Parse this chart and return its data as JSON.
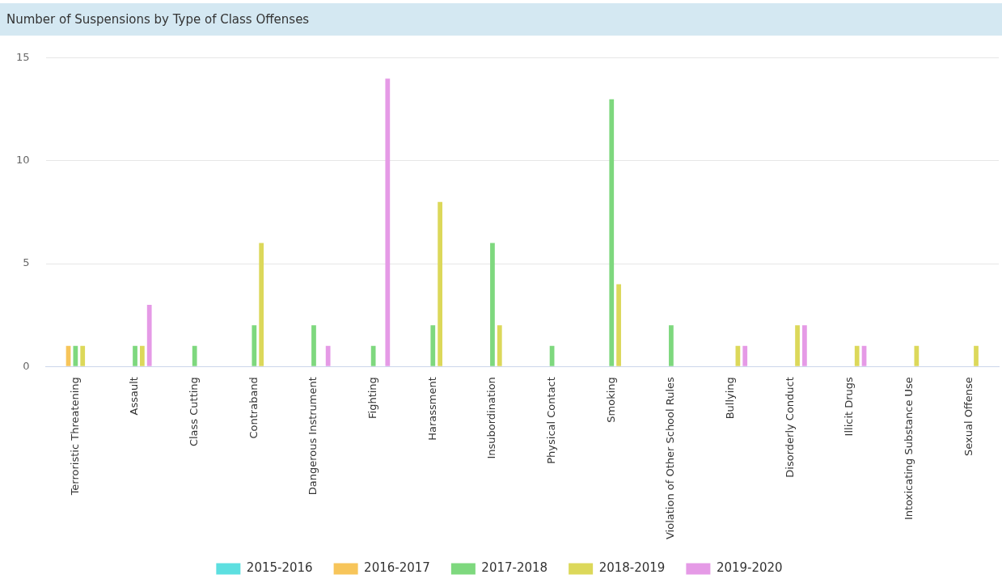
{
  "chart_data": {
    "type": "bar",
    "title": "Number of Suspensions by Type of Class Offenses",
    "categories": [
      "Terroristic Threatening",
      "Assault",
      "Class Cutting",
      "Contraband",
      "Dangerous Instrument",
      "Fighting",
      "Harassment",
      "Insubordination",
      "Physical Contact",
      "Smoking",
      "Violation of Other School Rules",
      "Bullying",
      "Disorderly Conduct",
      "Illicit Drugs",
      "Intoxicating Substance Use",
      "Sexual Offense"
    ],
    "series": [
      {
        "name": "2015-2016",
        "color": "#5ddfe0",
        "values": [
          null,
          null,
          null,
          null,
          null,
          null,
          null,
          null,
          null,
          null,
          null,
          null,
          null,
          null,
          null,
          null
        ]
      },
      {
        "name": "2016-2017",
        "color": "#f7c55a",
        "values": [
          1,
          null,
          null,
          null,
          null,
          null,
          null,
          null,
          null,
          null,
          null,
          null,
          null,
          null,
          null,
          null
        ]
      },
      {
        "name": "2017-2018",
        "color": "#7ed87e",
        "values": [
          1,
          1,
          1,
          2,
          2,
          1,
          2,
          6,
          1,
          13,
          2,
          null,
          null,
          null,
          null,
          null
        ]
      },
      {
        "name": "2018-2019",
        "color": "#dcd85a",
        "values": [
          1,
          1,
          null,
          6,
          null,
          null,
          8,
          2,
          null,
          4,
          null,
          1,
          2,
          1,
          1,
          1
        ]
      },
      {
        "name": "2019-2020",
        "color": "#e59ae6",
        "values": [
          null,
          3,
          null,
          null,
          1,
          14,
          null,
          null,
          null,
          null,
          null,
          1,
          2,
          1,
          null,
          null
        ]
      }
    ],
    "ylim": [
      0,
      15
    ],
    "yticks": [
      0,
      5,
      10,
      15
    ],
    "grid": "y",
    "legend": "bottom"
  }
}
